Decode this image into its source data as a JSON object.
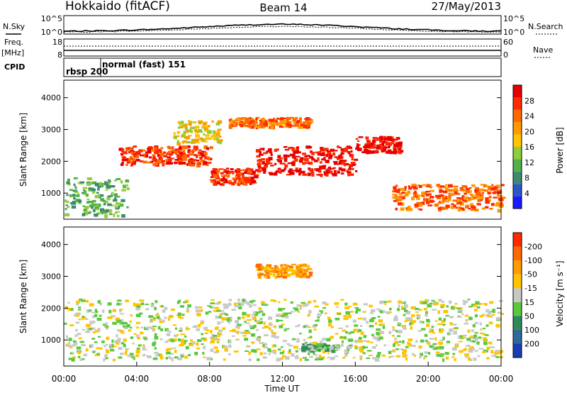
{
  "header": {
    "station": "Hokkaido (fitACF)",
    "beam": "Beam 14",
    "date": "27/May/2013"
  },
  "strip": {
    "nsky_label": "N.Sky",
    "nsearch_label": "N.Search",
    "noise_ticks": [
      "10^5",
      "10^0"
    ],
    "freq_label": "Freq.",
    "freq_unit": "[MHz]",
    "freq_ticks": [
      "18",
      "8"
    ],
    "nave_label": "Nave",
    "nave_ticks": [
      "60",
      "0"
    ],
    "cpid_label": "CPID",
    "cpid_items": [
      "rbsp 200",
      "normal (fast) 151"
    ]
  },
  "chart_data": [
    {
      "type": "heatmap",
      "ylabel": "Slant Range [km]",
      "ylim": [
        180,
        4550
      ],
      "yticks": [
        "1000",
        "2000",
        "3000",
        "4000"
      ],
      "colorbar_label": "Power [dB]",
      "colorbar_ticks": [
        "4",
        "8",
        "12",
        "16",
        "20",
        "24",
        "28"
      ],
      "colors": [
        "#1a1aff",
        "#2d55c8",
        "#3d8a6e",
        "#52b04a",
        "#8fce3a",
        "#ffc400",
        "#ff9a00",
        "#ff6a00",
        "#ff2a00",
        "#e60000"
      ],
      "echo_bands": [
        {
          "start": "00:00",
          "end": "03:30",
          "range_lo": 300,
          "range_hi": 1500,
          "level": 3
        },
        {
          "start": "03:00",
          "end": "08:00",
          "range_lo": 1900,
          "range_hi": 2500,
          "level": 8
        },
        {
          "start": "08:00",
          "end": "10:30",
          "range_lo": 1300,
          "range_hi": 1800,
          "level": 8
        },
        {
          "start": "10:30",
          "end": "16:00",
          "range_lo": 1600,
          "range_hi": 2500,
          "level": 9
        },
        {
          "start": "16:00",
          "end": "18:30",
          "range_lo": 2300,
          "range_hi": 2800,
          "level": 9
        },
        {
          "start": "06:00",
          "end": "08:30",
          "range_lo": 2600,
          "range_hi": 3300,
          "level": 5
        },
        {
          "start": "09:00",
          "end": "13:30",
          "range_lo": 3100,
          "range_hi": 3400,
          "level": 7
        },
        {
          "start": "18:00",
          "end": "24:00",
          "range_lo": 500,
          "range_hi": 1300,
          "level": 7
        }
      ]
    },
    {
      "type": "heatmap",
      "ylabel": "Slant Range [km]",
      "xlabel": "Time UT",
      "ylim": [
        180,
        4550
      ],
      "yticks": [
        "1000",
        "2000",
        "3000",
        "4000"
      ],
      "xticks": [
        "00:00",
        "04:00",
        "08:00",
        "12:00",
        "16:00",
        "20:00",
        "00:00"
      ],
      "colorbar_label": "Velocity [m s⁻¹]",
      "colorbar_ticks": [
        "200",
        "100",
        "50",
        "15",
        "-15",
        "-50",
        "-100",
        "-200"
      ],
      "colors": [
        "#1a3cb4",
        "#2d6a9a",
        "#2e8a5a",
        "#5ac83c",
        "#c8c8c8",
        "#ffc400",
        "#ff9a00",
        "#ff6a00",
        "#ff2a00"
      ],
      "echo_bands": [
        {
          "start": "00:00",
          "end": "24:00",
          "range_lo": 400,
          "range_hi": 2300,
          "level": 4
        },
        {
          "start": "10:30",
          "end": "13:30",
          "range_lo": 3000,
          "range_hi": 3400,
          "level": 6
        },
        {
          "start": "13:00",
          "end": "15:00",
          "range_lo": 700,
          "range_hi": 900,
          "level": 3
        }
      ]
    }
  ]
}
